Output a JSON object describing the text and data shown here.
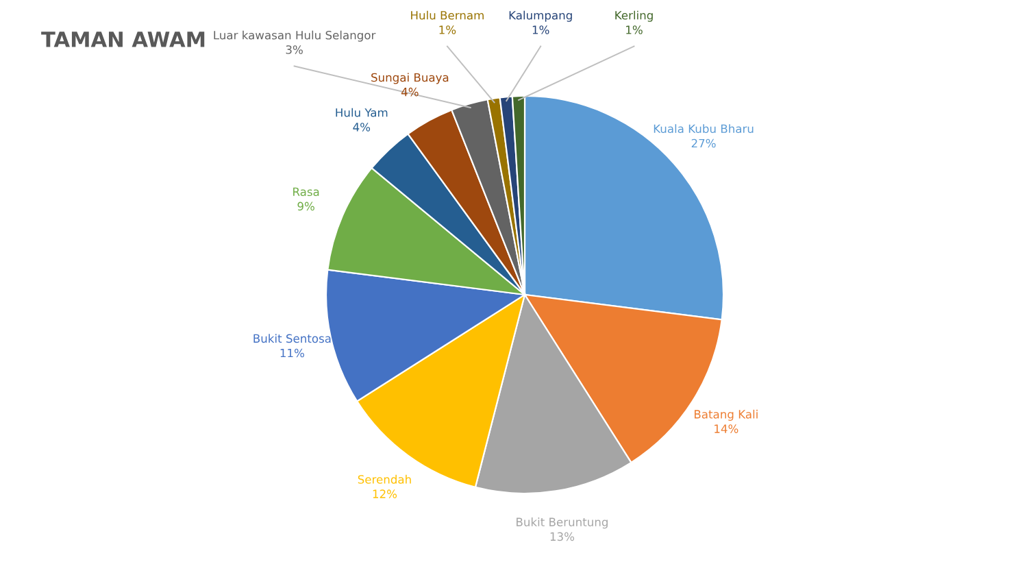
{
  "chart_data": {
    "type": "pie",
    "title": "TAMAN AWAM",
    "categories": [
      "Kuala Kubu Bharu",
      "Batang Kali",
      "Bukit Beruntung",
      "Serendah",
      "Bukit Sentosa",
      "Rasa",
      "Hulu Yam",
      "Sungai Buaya",
      "Luar kawasan Hulu Selangor",
      "Hulu Bernam",
      "Kalumpang",
      "Kerling"
    ],
    "values": [
      27,
      14,
      13,
      12,
      11,
      9,
      4,
      4,
      3,
      1,
      1,
      1
    ],
    "colors": [
      "#5b9bd5",
      "#ed7d31",
      "#a5a5a5",
      "#ffc000",
      "#4472c4",
      "#70ad47",
      "#255e91",
      "#9e480e",
      "#636363",
      "#997300",
      "#264478",
      "#43682b"
    ],
    "value_labels": [
      "27%",
      "14%",
      "13%",
      "12%",
      "11%",
      "9%",
      "4%",
      "4%",
      "3%",
      "1%",
      "1%",
      "1%"
    ],
    "legend": false
  }
}
